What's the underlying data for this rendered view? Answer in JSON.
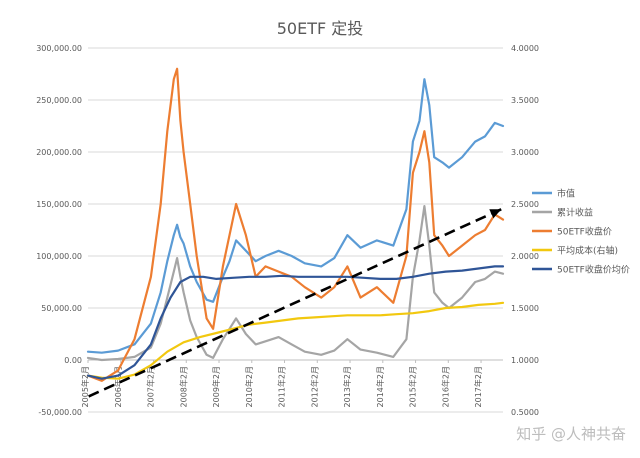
{
  "watermark": "知乎 @人神共奋",
  "chart_data": {
    "type": "line",
    "title": "50ETF 定投",
    "x_tick_labels": [
      "2005年2月",
      "2006年2月",
      "2007年2月",
      "2008年2月",
      "2009年2月",
      "2010年2月",
      "2011年2月",
      "2012年2月",
      "2013年2月",
      "2014年2月",
      "2015年2月",
      "2016年2月",
      "2017年2月"
    ],
    "x_range": [
      2005.08,
      2017.75
    ],
    "y_left": {
      "range": [
        -50000,
        300000
      ],
      "ticks": [
        -50000,
        0,
        50000,
        100000,
        150000,
        200000,
        250000,
        300000
      ],
      "tick_labels": [
        "-50,000.00",
        "0.00",
        "50,000.00",
        "100,000.00",
        "150,000.00",
        "200,000.00",
        "250,000.00",
        "300,000.00"
      ]
    },
    "y_right": {
      "range": [
        0.5,
        4.0
      ],
      "ticks": [
        0.5,
        1.0,
        1.5,
        2.0,
        2.5,
        3.0,
        3.5,
        4.0
      ],
      "tick_labels": [
        "0.5000",
        "1.0000",
        "1.5000",
        "2.0000",
        "2.5000",
        "3.0000",
        "3.5000",
        "4.0000"
      ]
    },
    "grid": true,
    "legend_position": "right",
    "series": [
      {
        "name": "市值",
        "axis": "left",
        "color": "#5b9bd5",
        "x": [
          2005.08,
          2005.5,
          2006.0,
          2006.5,
          2007.0,
          2007.3,
          2007.5,
          2007.7,
          2007.8,
          2007.9,
          2008.0,
          2008.2,
          2008.4,
          2008.7,
          2008.9,
          2009.2,
          2009.4,
          2009.6,
          2009.9,
          2010.2,
          2010.5,
          2010.9,
          2011.3,
          2011.7,
          2012.2,
          2012.6,
          2013.0,
          2013.4,
          2013.9,
          2014.4,
          2014.8,
          2015.0,
          2015.2,
          2015.35,
          2015.5,
          2015.65,
          2015.9,
          2016.1,
          2016.5,
          2016.9,
          2017.2,
          2017.5,
          2017.75
        ],
        "y": [
          8000,
          7000,
          9000,
          15000,
          35000,
          65000,
          95000,
          120000,
          130000,
          118000,
          112000,
          90000,
          75000,
          58000,
          56000,
          80000,
          95000,
          115000,
          105000,
          95000,
          100000,
          105000,
          100000,
          93000,
          90000,
          98000,
          120000,
          108000,
          115000,
          110000,
          145000,
          210000,
          230000,
          270000,
          245000,
          195000,
          190000,
          185000,
          195000,
          210000,
          215000,
          228000,
          225000
        ]
      },
      {
        "name": "累计收益",
        "axis": "left",
        "color": "#a5a5a5",
        "x": [
          2005.08,
          2005.5,
          2006.0,
          2006.5,
          2007.0,
          2007.3,
          2007.5,
          2007.7,
          2007.8,
          2007.9,
          2008.0,
          2008.2,
          2008.4,
          2008.7,
          2008.9,
          2009.2,
          2009.4,
          2009.6,
          2009.9,
          2010.2,
          2010.5,
          2010.9,
          2011.3,
          2011.7,
          2012.2,
          2012.6,
          2013.0,
          2013.4,
          2013.9,
          2014.4,
          2014.8,
          2015.0,
          2015.2,
          2015.35,
          2015.5,
          2015.65,
          2015.9,
          2016.1,
          2016.5,
          2016.9,
          2017.2,
          2017.5,
          2017.75
        ],
        "y": [
          2000,
          0,
          1000,
          3000,
          12000,
          35000,
          60000,
          85000,
          98000,
          80000,
          65000,
          38000,
          22000,
          5000,
          2000,
          20000,
          30000,
          40000,
          25000,
          15000,
          18000,
          22000,
          15000,
          8000,
          5000,
          9000,
          20000,
          10000,
          7000,
          3000,
          20000,
          80000,
          115000,
          148000,
          110000,
          65000,
          55000,
          50000,
          60000,
          75000,
          78000,
          85000,
          83000
        ]
      },
      {
        "name": "50ETF收盘价",
        "axis": "right",
        "color": "#ed7d31",
        "x": [
          2005.08,
          2005.5,
          2006.0,
          2006.5,
          2007.0,
          2007.3,
          2007.5,
          2007.7,
          2007.8,
          2007.9,
          2008.0,
          2008.2,
          2008.4,
          2008.7,
          2008.9,
          2009.2,
          2009.4,
          2009.6,
          2009.9,
          2010.2,
          2010.5,
          2010.9,
          2011.3,
          2011.7,
          2012.2,
          2012.6,
          2013.0,
          2013.4,
          2013.9,
          2014.4,
          2014.8,
          2015.0,
          2015.2,
          2015.35,
          2015.5,
          2015.65,
          2015.9,
          2016.1,
          2016.5,
          2016.9,
          2017.2,
          2017.5,
          2017.75
        ],
        "y": [
          0.85,
          0.8,
          0.9,
          1.2,
          1.8,
          2.5,
          3.2,
          3.7,
          3.8,
          3.3,
          3.0,
          2.5,
          2.0,
          1.4,
          1.3,
          1.9,
          2.2,
          2.5,
          2.2,
          1.8,
          1.9,
          1.85,
          1.8,
          1.7,
          1.6,
          1.7,
          1.9,
          1.6,
          1.7,
          1.55,
          2.0,
          2.8,
          3.0,
          3.2,
          2.9,
          2.2,
          2.1,
          2.0,
          2.1,
          2.2,
          2.25,
          2.4,
          2.35
        ]
      },
      {
        "name": "平均成本(右轴)",
        "axis": "right",
        "color": "#f2c80f",
        "x": [
          2005.08,
          2005.5,
          2006.0,
          2006.5,
          2007.0,
          2007.5,
          2008.0,
          2008.5,
          2009.0,
          2009.5,
          2010.0,
          2010.5,
          2011.0,
          2011.5,
          2012.0,
          2012.5,
          2013.0,
          2013.5,
          2014.0,
          2014.5,
          2015.0,
          2015.5,
          2016.0,
          2016.5,
          2017.0,
          2017.5,
          2017.75
        ],
        "y": [
          0.85,
          0.83,
          0.82,
          0.86,
          0.95,
          1.08,
          1.17,
          1.22,
          1.26,
          1.3,
          1.34,
          1.36,
          1.38,
          1.4,
          1.41,
          1.42,
          1.43,
          1.43,
          1.43,
          1.44,
          1.45,
          1.47,
          1.5,
          1.51,
          1.53,
          1.54,
          1.55
        ]
      },
      {
        "name": "50ETF收盘价均价",
        "axis": "right",
        "color": "#2f5597",
        "x": [
          2005.08,
          2005.5,
          2006.0,
          2006.5,
          2007.0,
          2007.3,
          2007.6,
          2007.9,
          2008.2,
          2008.6,
          2009.0,
          2009.5,
          2010.0,
          2010.5,
          2011.0,
          2011.5,
          2012.0,
          2012.5,
          2013.0,
          2013.5,
          2014.0,
          2014.5,
          2015.0,
          2015.5,
          2016.0,
          2016.5,
          2017.0,
          2017.5,
          2017.75
        ],
        "y": [
          0.85,
          0.82,
          0.85,
          0.95,
          1.15,
          1.4,
          1.6,
          1.75,
          1.8,
          1.8,
          1.78,
          1.79,
          1.8,
          1.8,
          1.81,
          1.8,
          1.8,
          1.8,
          1.8,
          1.79,
          1.78,
          1.78,
          1.8,
          1.83,
          1.85,
          1.86,
          1.88,
          1.9,
          1.9
        ]
      }
    ],
    "annotation": {
      "type": "dashed-arrow",
      "color": "#000000",
      "from": [
        2005.1,
        0.65
      ],
      "to": [
        2017.7,
        2.45
      ]
    }
  }
}
